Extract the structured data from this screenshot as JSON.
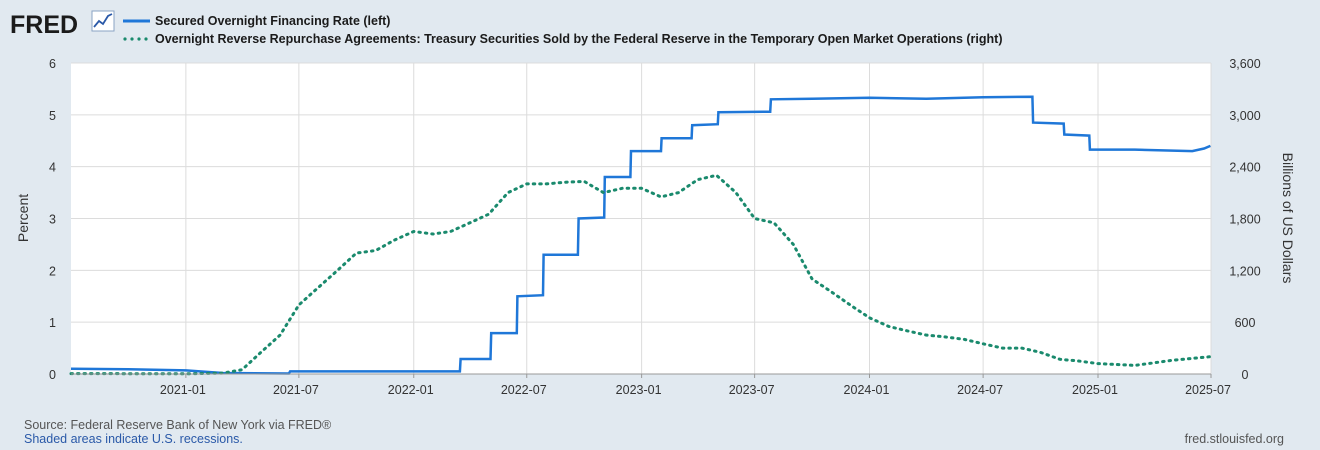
{
  "brand": {
    "logo_text": "FRED"
  },
  "colors": {
    "background": "#e1e9f0",
    "plot_background": "#ffffff",
    "gridline": "#dcdcdc",
    "sofr": "#1f77d8",
    "onrrp": "#1a8a6d"
  },
  "legend": {
    "series1": "Secured Overnight Financing Rate (left)",
    "series2": "Overnight Reverse Repurchase Agreements: Treasury Securities Sold by the Federal Reserve in the Temporary Open Market Operations (right)"
  },
  "footer": {
    "source": "Source: Federal Reserve Bank of New York via FRED®",
    "recession_note": "Shaded areas indicate U.S. recessions.",
    "url": "fred.stlouisfed.org"
  },
  "chart_data": {
    "type": "line",
    "x_range": [
      "2020-07-01",
      "2025-07-01"
    ],
    "x_ticks": [
      "2021-01",
      "2021-07",
      "2022-01",
      "2022-07",
      "2023-01",
      "2023-07",
      "2024-01",
      "2024-07",
      "2025-01",
      "2025-07"
    ],
    "left_axis": {
      "label": "Percent",
      "ylim": [
        0,
        6
      ],
      "ticks": [
        "0",
        "1",
        "2",
        "3",
        "4",
        "5",
        "6"
      ]
    },
    "right_axis": {
      "label": "Billions of US Dollars",
      "ylim": [
        0,
        3600
      ],
      "ticks": [
        "0",
        "600",
        "1,200",
        "1,800",
        "2,400",
        "3,000",
        "3,600"
      ]
    },
    "grid": true,
    "series": [
      {
        "name": "Secured Overnight Financing Rate (left)",
        "axis": "left",
        "style": "solid",
        "color": "#1f77d8",
        "points": [
          [
            "2020-07-01",
            0.1
          ],
          [
            "2020-10-01",
            0.09
          ],
          [
            "2021-01-01",
            0.07
          ],
          [
            "2021-03-01",
            0.02
          ],
          [
            "2021-06-15",
            0.01
          ],
          [
            "2021-06-17",
            0.05
          ],
          [
            "2022-03-16",
            0.05
          ],
          [
            "2022-03-17",
            0.29
          ],
          [
            "2022-05-04",
            0.29
          ],
          [
            "2022-05-05",
            0.79
          ],
          [
            "2022-06-15",
            0.79
          ],
          [
            "2022-06-16",
            1.5
          ],
          [
            "2022-07-27",
            1.52
          ],
          [
            "2022-07-28",
            2.3
          ],
          [
            "2022-09-21",
            2.3
          ],
          [
            "2022-09-22",
            3.0
          ],
          [
            "2022-11-02",
            3.02
          ],
          [
            "2022-11-03",
            3.8
          ],
          [
            "2022-12-14",
            3.8
          ],
          [
            "2022-12-15",
            4.3
          ],
          [
            "2023-02-01",
            4.3
          ],
          [
            "2023-02-02",
            4.55
          ],
          [
            "2023-03-22",
            4.55
          ],
          [
            "2023-03-23",
            4.8
          ],
          [
            "2023-05-03",
            4.82
          ],
          [
            "2023-05-04",
            5.05
          ],
          [
            "2023-07-26",
            5.06
          ],
          [
            "2023-07-27",
            5.3
          ],
          [
            "2023-10-01",
            5.31
          ],
          [
            "2024-01-01",
            5.33
          ],
          [
            "2024-04-01",
            5.31
          ],
          [
            "2024-07-01",
            5.34
          ],
          [
            "2024-09-18",
            5.35
          ],
          [
            "2024-09-19",
            4.85
          ],
          [
            "2024-11-07",
            4.83
          ],
          [
            "2024-11-08",
            4.62
          ],
          [
            "2024-12-18",
            4.6
          ],
          [
            "2024-12-19",
            4.33
          ],
          [
            "2025-03-01",
            4.33
          ],
          [
            "2025-06-01",
            4.3
          ],
          [
            "2025-06-20",
            4.35
          ],
          [
            "2025-06-30",
            4.4
          ]
        ]
      },
      {
        "name": "Overnight Reverse Repurchase Agreements: Treasury Securities Sold by the Federal Reserve in the Temporary Open Market Operations (right)",
        "axis": "right",
        "style": "dotted",
        "color": "#1a8a6d",
        "points": [
          [
            "2020-07-01",
            5
          ],
          [
            "2020-10-01",
            3
          ],
          [
            "2021-01-01",
            2
          ],
          [
            "2021-03-01",
            10
          ],
          [
            "2021-04-01",
            50
          ],
          [
            "2021-05-01",
            250
          ],
          [
            "2021-06-01",
            450
          ],
          [
            "2021-07-01",
            800
          ],
          [
            "2021-08-01",
            1000
          ],
          [
            "2021-09-01",
            1200
          ],
          [
            "2021-10-01",
            1400
          ],
          [
            "2021-11-01",
            1430
          ],
          [
            "2021-12-01",
            1550
          ],
          [
            "2022-01-01",
            1650
          ],
          [
            "2022-02-01",
            1620
          ],
          [
            "2022-03-01",
            1650
          ],
          [
            "2022-04-01",
            1750
          ],
          [
            "2022-05-01",
            1850
          ],
          [
            "2022-06-01",
            2100
          ],
          [
            "2022-07-01",
            2200
          ],
          [
            "2022-08-01",
            2200
          ],
          [
            "2022-09-01",
            2220
          ],
          [
            "2022-10-01",
            2230
          ],
          [
            "2022-11-01",
            2100
          ],
          [
            "2022-12-01",
            2150
          ],
          [
            "2023-01-01",
            2150
          ],
          [
            "2023-02-01",
            2050
          ],
          [
            "2023-03-01",
            2100
          ],
          [
            "2023-04-01",
            2250
          ],
          [
            "2023-05-01",
            2300
          ],
          [
            "2023-06-01",
            2100
          ],
          [
            "2023-07-01",
            1800
          ],
          [
            "2023-08-01",
            1750
          ],
          [
            "2023-09-01",
            1500
          ],
          [
            "2023-10-01",
            1100
          ],
          [
            "2023-11-01",
            950
          ],
          [
            "2023-12-01",
            800
          ],
          [
            "2024-01-01",
            650
          ],
          [
            "2024-02-01",
            550
          ],
          [
            "2024-03-01",
            500
          ],
          [
            "2024-04-01",
            450
          ],
          [
            "2024-05-01",
            430
          ],
          [
            "2024-06-01",
            400
          ],
          [
            "2024-07-01",
            350
          ],
          [
            "2024-08-01",
            300
          ],
          [
            "2024-09-01",
            300
          ],
          [
            "2024-10-01",
            250
          ],
          [
            "2024-11-01",
            170
          ],
          [
            "2024-12-01",
            150
          ],
          [
            "2025-01-01",
            120
          ],
          [
            "2025-02-01",
            110
          ],
          [
            "2025-03-01",
            100
          ],
          [
            "2025-04-01",
            130
          ],
          [
            "2025-05-01",
            160
          ],
          [
            "2025-06-01",
            180
          ],
          [
            "2025-06-30",
            200
          ]
        ]
      }
    ]
  }
}
